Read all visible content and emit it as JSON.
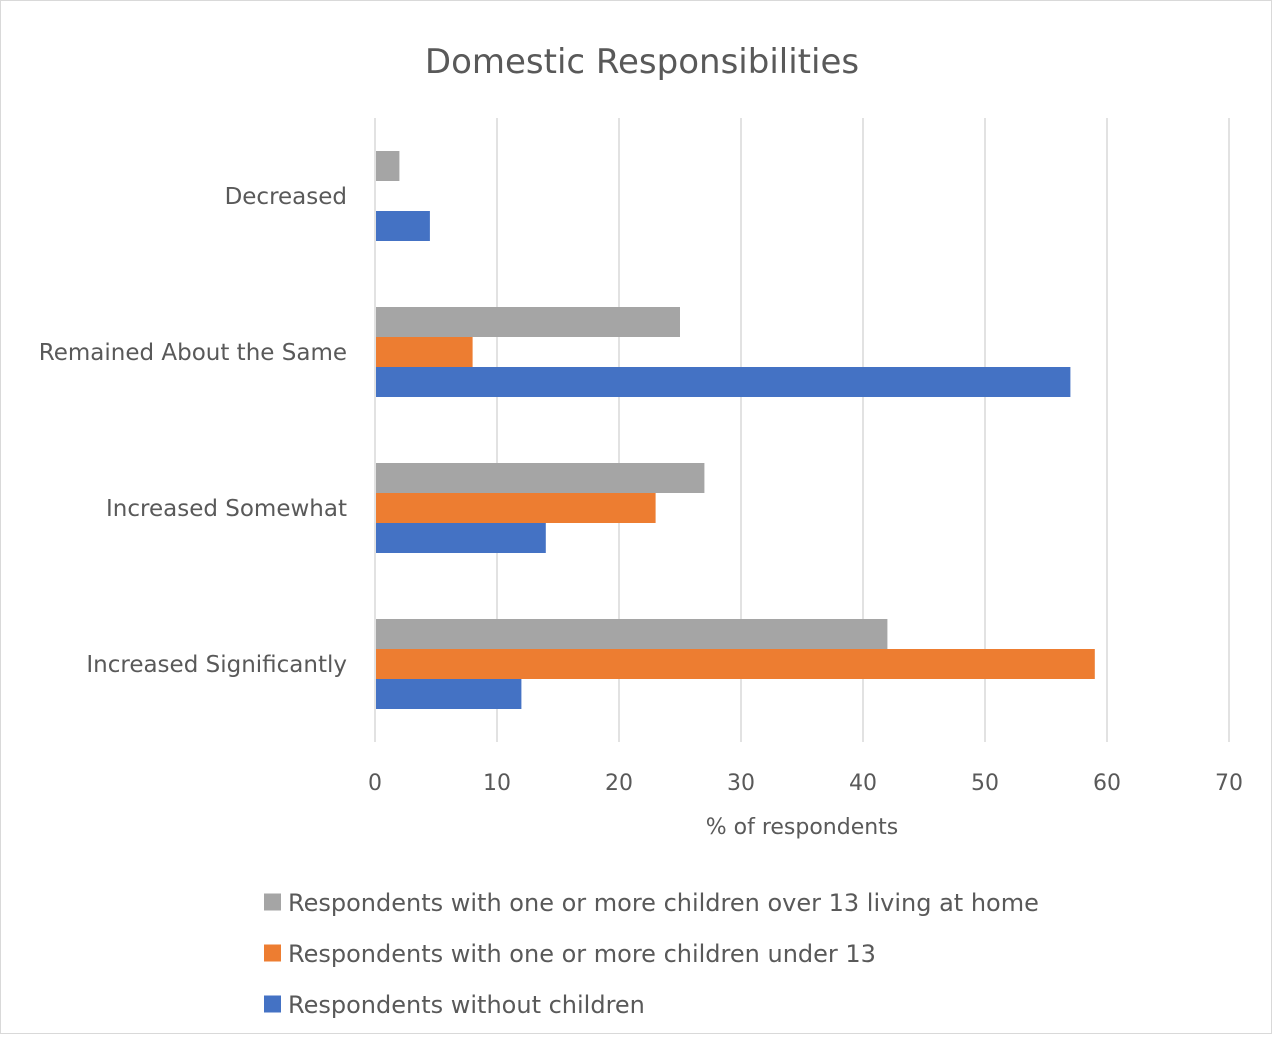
{
  "chart_data": {
    "type": "bar",
    "orientation": "horizontal",
    "title": "Domestic Responsibilities",
    "xlabel": "% of respondents",
    "ylabel": "",
    "xlim": [
      0,
      70
    ],
    "x_ticks": [
      "0",
      "10",
      "20",
      "30",
      "40",
      "50",
      "60",
      "70"
    ],
    "grid": "vertical",
    "legend_position": "bottom",
    "categories": [
      "Decreased",
      "Remained About the Same",
      "Increased Somewhat",
      "Increased Significantly"
    ],
    "series": [
      {
        "name": "Respondents with one or more children over 13 living at home",
        "color": "#a5a5a5",
        "values": [
          2,
          25,
          27,
          42
        ]
      },
      {
        "name": "Respondents with one or more children under 13",
        "color": "#ed7d31",
        "values": [
          0,
          8,
          23,
          59
        ]
      },
      {
        "name": "Respondents without children",
        "color": "#4472c4",
        "values": [
          4.5,
          57,
          14,
          12
        ]
      }
    ]
  }
}
